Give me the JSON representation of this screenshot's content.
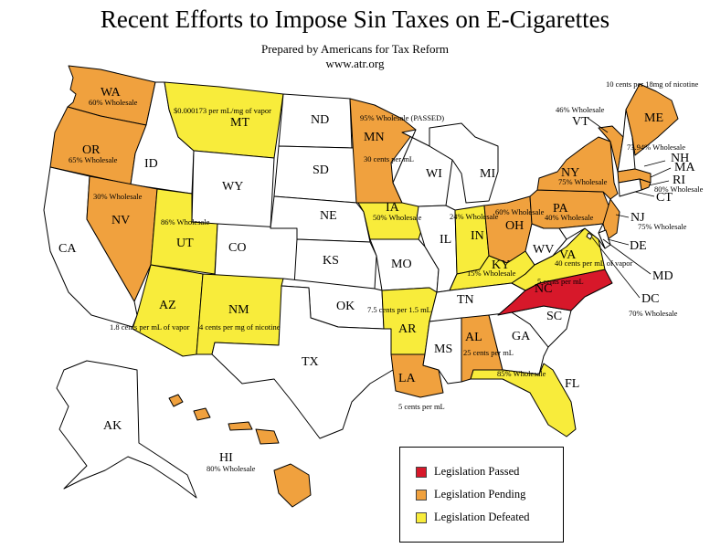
{
  "title": "Recent Efforts to Impose Sin Taxes on E-Cigarettes",
  "subtitle_line1": "Prepared by Americans for Tax Reform",
  "subtitle_line2": "www.atr.org",
  "colors": {
    "passed": "#d7182a",
    "pending": "#f0a13e",
    "defeated": "#f8ec3b",
    "none": "#ffffff"
  },
  "legend": [
    {
      "label": "Legislation Passed",
      "status": "passed"
    },
    {
      "label": "Legislation Pending",
      "status": "pending"
    },
    {
      "label": "Legislation Defeated",
      "status": "defeated"
    }
  ],
  "states": {
    "WA": {
      "status": "pending",
      "note": "60% Wholesale"
    },
    "OR": {
      "status": "pending",
      "note": "65% Wholesale"
    },
    "CA": {
      "status": "none",
      "note": ""
    },
    "ID": {
      "status": "none",
      "note": ""
    },
    "NV": {
      "status": "pending",
      "note": "30% Wholesale"
    },
    "MT": {
      "status": "defeated",
      "note": "$0.000173 per mL/mg of vapor"
    },
    "WY": {
      "status": "none",
      "note": ""
    },
    "UT": {
      "status": "defeated",
      "note": "86% Wholesale"
    },
    "CO": {
      "status": "none",
      "note": ""
    },
    "AZ": {
      "status": "defeated",
      "note": "1.8 cents per mL of vapor"
    },
    "NM": {
      "status": "defeated",
      "note": "4 cents per mg of nicotine"
    },
    "ND": {
      "status": "none",
      "note": ""
    },
    "SD": {
      "status": "none",
      "note": ""
    },
    "NE": {
      "status": "none",
      "note": ""
    },
    "KS": {
      "status": "none",
      "note": ""
    },
    "OK": {
      "status": "none",
      "note": ""
    },
    "TX": {
      "status": "none",
      "note": ""
    },
    "MN": {
      "status": "pending",
      "note": "95% Wholesale (PASSED)",
      "note2": "30 cents per mL"
    },
    "IA": {
      "status": "defeated",
      "note": "50% Wholesale"
    },
    "MO": {
      "status": "none",
      "note": ""
    },
    "AR": {
      "status": "defeated",
      "note": "7.5 cents per 1.5 mL"
    },
    "LA": {
      "status": "pending",
      "note": "5 cents per mL"
    },
    "WI": {
      "status": "none",
      "note": ""
    },
    "IL": {
      "status": "none",
      "note": ""
    },
    "MI": {
      "status": "none",
      "note": ""
    },
    "IN": {
      "status": "defeated",
      "note": "24% Wholesale"
    },
    "OH": {
      "status": "pending",
      "note": "60% Wholesale"
    },
    "KY": {
      "status": "defeated",
      "note": "15% Wholesale"
    },
    "TN": {
      "status": "none",
      "note": ""
    },
    "MS": {
      "status": "none",
      "note": ""
    },
    "AL": {
      "status": "pending",
      "note": "25 cents per mL"
    },
    "GA": {
      "status": "none",
      "note": ""
    },
    "FL": {
      "status": "defeated",
      "note": "85% Wholesale"
    },
    "SC": {
      "status": "none",
      "note": ""
    },
    "NC": {
      "status": "passed",
      "note": "5 cents per mL"
    },
    "VA": {
      "status": "defeated",
      "note": "40 cents per mL of vapor"
    },
    "WV": {
      "status": "none",
      "note": ""
    },
    "PA": {
      "status": "pending",
      "note": "40% Wholesale"
    },
    "NY": {
      "status": "pending",
      "note": "75% Wholesale"
    },
    "VT": {
      "status": "pending",
      "note": "46% Wholesale"
    },
    "ME": {
      "status": "pending",
      "note": "10 cents per 18mg of nicotine"
    },
    "NH": {
      "status": "none",
      "note": ""
    },
    "MA": {
      "status": "pending",
      "note": "73.94% Wholesale"
    },
    "RI": {
      "status": "pending",
      "note": "80% Wholesale"
    },
    "CT": {
      "status": "none",
      "note": ""
    },
    "NJ": {
      "status": "pending",
      "note": "75% Wholesale"
    },
    "DE": {
      "status": "none",
      "note": ""
    },
    "MD": {
      "status": "none",
      "note": ""
    },
    "DC": {
      "status": "none",
      "note": "70% Wholesale"
    },
    "AK": {
      "status": "none",
      "note": ""
    },
    "HI": {
      "status": "pending",
      "note": "80% Wholesale"
    }
  }
}
